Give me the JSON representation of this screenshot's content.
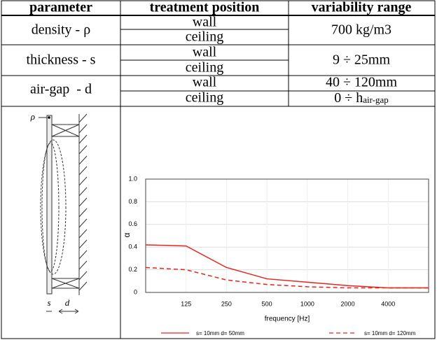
{
  "table": {
    "header": [
      "parameter",
      "treatment position",
      "variability range"
    ],
    "rows": [
      {
        "parameter": "density - ρ",
        "positions": [
          "wall",
          "ceiling"
        ],
        "range": "700 kg/m3"
      },
      {
        "parameter": "thickness - s",
        "positions": [
          "wall",
          "ceiling"
        ],
        "range": "9 ÷ 25mm"
      },
      {
        "parameter": "air-gap  - d",
        "positions": [
          "wall",
          "ceiling"
        ],
        "ranges": [
          "40 ÷ 120mm",
          {
            "text": "0 ÷ h",
            "subscript": "air-gap"
          }
        ]
      }
    ]
  },
  "diagram": {
    "labels": [
      "ρ",
      "s",
      "d"
    ]
  },
  "chart_data": {
    "type": "line",
    "xlabel": "frequency  [Hz]",
    "ylabel": "α",
    "categories": [
      null,
      "125",
      "250",
      "500",
      "1000",
      "2000",
      "4000",
      null
    ],
    "series": [
      {
        "name": "s= 10mm  d= 50mm",
        "color": "#e8241c",
        "dash": false,
        "values": [
          0.42,
          0.41,
          0.22,
          0.12,
          0.09,
          0.06,
          0.04,
          0.04
        ]
      },
      {
        "name": "s= 10mm  d= 120mm",
        "color": "#e8241c",
        "dash": true,
        "values": [
          0.22,
          0.2,
          0.11,
          0.07,
          0.05,
          0.04,
          0.04,
          0.04
        ]
      }
    ],
    "ylim": [
      0,
      1
    ],
    "yticks": [
      0,
      0.2,
      0.4,
      0.6,
      0.8,
      {
        "value": 1,
        "label": "1.0"
      }
    ],
    "grid": true
  }
}
